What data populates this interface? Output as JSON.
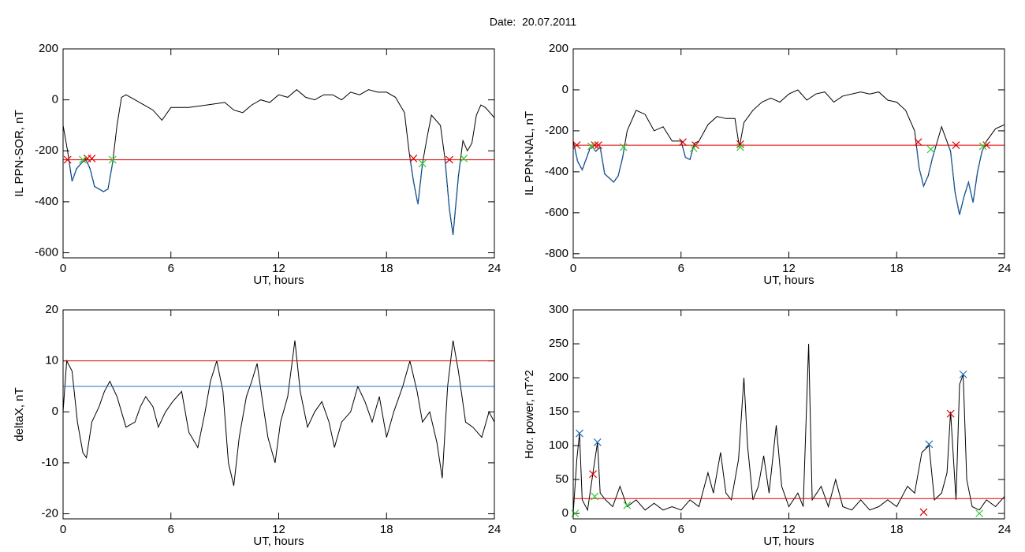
{
  "title": "Date:  20.07.2011",
  "chart_data": [
    {
      "type": "line",
      "ylabel": "IL PPN-SOR, nT",
      "xlabel": "UT, hours",
      "color": "#000000",
      "below_color": "#1f6fbf",
      "xlim": [
        0,
        24
      ],
      "xticks": [
        0,
        6,
        12,
        18,
        24
      ],
      "ylim": [
        -620,
        200
      ],
      "yticks": [
        -600,
        -400,
        -200,
        0,
        200
      ],
      "x": [
        0,
        0.25,
        0.5,
        0.75,
        1,
        1.25,
        1.5,
        1.75,
        2,
        2.25,
        2.5,
        2.75,
        3,
        3.25,
        3.5,
        4,
        4.5,
        5,
        5.5,
        6,
        7,
        8,
        9,
        9.5,
        10,
        10.5,
        11,
        11.5,
        12,
        12.5,
        13,
        13.5,
        14,
        14.5,
        15,
        15.5,
        16,
        16.5,
        17,
        17.5,
        18,
        18.5,
        19,
        19.25,
        19.5,
        19.75,
        20,
        20.25,
        20.5,
        21,
        21.25,
        21.5,
        21.7,
        22,
        22.25,
        22.5,
        22.75,
        23,
        23.25,
        23.5,
        24
      ],
      "values": [
        -100,
        -200,
        -320,
        -270,
        -250,
        -230,
        -270,
        -340,
        -350,
        -360,
        -350,
        -250,
        -100,
        10,
        20,
        0,
        -20,
        -40,
        -80,
        -30,
        -30,
        -20,
        -10,
        -40,
        -50,
        -20,
        0,
        -10,
        20,
        10,
        40,
        10,
        0,
        20,
        20,
        0,
        30,
        20,
        40,
        30,
        30,
        10,
        -50,
        -200,
        -320,
        -410,
        -250,
        -150,
        -60,
        -100,
        -230,
        -430,
        -530,
        -300,
        -160,
        -200,
        -170,
        -60,
        -20,
        -30,
        -70
      ],
      "lines": [
        {
          "value": -235,
          "color": "#e00000"
        }
      ],
      "markers": [
        {
          "color": "#e00000",
          "x": [
            0.25,
            1.35,
            1.6,
            19.5,
            21.5
          ],
          "values": [
            -235,
            -230,
            -230,
            -230,
            -235
          ]
        },
        {
          "color": "#2ecc2e",
          "x": [
            1.1,
            2.75,
            20.0,
            22.3
          ],
          "values": [
            -235,
            -235,
            -250,
            -230
          ]
        }
      ]
    },
    {
      "type": "line",
      "ylabel": "IL PPN-NAL, nT",
      "xlabel": "UT, hours",
      "color": "#000000",
      "below_color": "#1f6fbf",
      "xlim": [
        0,
        24
      ],
      "xticks": [
        0,
        6,
        12,
        18,
        24
      ],
      "ylim": [
        -820,
        200
      ],
      "yticks": [
        -800,
        -600,
        -400,
        -200,
        0,
        200
      ],
      "x": [
        0,
        0.25,
        0.5,
        0.75,
        1,
        1.25,
        1.5,
        1.75,
        2,
        2.25,
        2.5,
        2.75,
        3,
        3.5,
        4,
        4.5,
        5,
        5.5,
        6,
        6.25,
        6.5,
        6.75,
        7,
        7.5,
        8,
        8.5,
        9,
        9.25,
        9.5,
        10,
        10.5,
        11,
        11.5,
        12,
        12.5,
        13,
        13.5,
        14,
        14.5,
        15,
        16,
        16.5,
        17,
        17.5,
        18,
        18.5,
        19,
        19.25,
        19.5,
        19.75,
        20,
        20.5,
        21,
        21.25,
        21.5,
        21.75,
        22,
        22.25,
        22.5,
        22.75,
        23,
        23.5,
        24
      ],
      "values": [
        -250,
        -350,
        -390,
        -330,
        -270,
        -300,
        -280,
        -410,
        -430,
        -450,
        -420,
        -330,
        -200,
        -100,
        -120,
        -200,
        -180,
        -250,
        -250,
        -330,
        -340,
        -260,
        -250,
        -170,
        -130,
        -140,
        -140,
        -280,
        -160,
        -100,
        -60,
        -40,
        -60,
        -20,
        0,
        -50,
        -20,
        -10,
        -60,
        -30,
        -10,
        -20,
        -10,
        -50,
        -60,
        -100,
        -200,
        -380,
        -470,
        -420,
        -330,
        -180,
        -300,
        -500,
        -610,
        -520,
        -450,
        -550,
        -400,
        -300,
        -250,
        -190,
        -170
      ],
      "lines": [
        {
          "value": -270,
          "color": "#e00000"
        }
      ],
      "markers": [
        {
          "color": "#e00000",
          "x": [
            0.2,
            1.2,
            1.4,
            6.1,
            6.8,
            9.3,
            19.2,
            21.3,
            23.0
          ],
          "values": [
            -270,
            -270,
            -270,
            -255,
            -270,
            -265,
            -255,
            -270,
            -270
          ]
        },
        {
          "color": "#2ecc2e",
          "x": [
            1.0,
            2.8,
            6.7,
            9.3,
            19.9,
            22.8
          ],
          "values": [
            -275,
            -280,
            -285,
            -280,
            -290,
            -275
          ]
        }
      ]
    },
    {
      "type": "line",
      "ylabel": "deltaX, nT",
      "xlabel": "UT, hours",
      "color": "#000000",
      "xlim": [
        0,
        24
      ],
      "xticks": [
        0,
        6,
        12,
        18,
        24
      ],
      "ylim": [
        -21,
        20
      ],
      "yticks": [
        -20,
        -10,
        0,
        10,
        20
      ],
      "x": [
        0,
        0.2,
        0.5,
        0.8,
        1.1,
        1.3,
        1.6,
        2,
        2.3,
        2.6,
        3,
        3.5,
        4,
        4.3,
        4.6,
        5,
        5.3,
        5.7,
        6.1,
        6.6,
        7,
        7.5,
        7.9,
        8.2,
        8.55,
        8.9,
        9.2,
        9.5,
        9.8,
        10.2,
        10.5,
        10.8,
        11.1,
        11.4,
        11.8,
        12.1,
        12.5,
        12.9,
        13.2,
        13.6,
        14,
        14.4,
        14.8,
        15.1,
        15.5,
        16,
        16.4,
        16.8,
        17.2,
        17.6,
        18,
        18.4,
        18.9,
        19.3,
        19.7,
        20,
        20.4,
        20.8,
        21.1,
        21.4,
        21.7,
        22,
        22.4,
        22.8,
        23.3,
        23.7,
        24
      ],
      "values": [
        0,
        10,
        8,
        -2,
        -8,
        -9,
        -2,
        1,
        4,
        6,
        3,
        -3,
        -2,
        1,
        3,
        1,
        -3,
        0,
        2,
        4,
        -4,
        -7,
        0,
        6,
        10,
        4,
        -10,
        -14.5,
        -5,
        3,
        6,
        9.5,
        2,
        -5,
        -10,
        -2,
        3,
        14,
        4,
        -3,
        0,
        2,
        -2,
        -7,
        -2,
        0,
        5,
        2,
        -2,
        3,
        -5,
        0,
        5,
        10,
        4,
        -2,
        0,
        -6,
        -13,
        5,
        14,
        8,
        -2,
        -3,
        -5,
        0,
        -2
      ],
      "lines": [
        {
          "value": 10,
          "color": "#e00000"
        },
        {
          "value": 5,
          "color": "#1f6fbf"
        }
      ],
      "markers": []
    },
    {
      "type": "line",
      "ylabel": "Hor. power, nT^2",
      "xlabel": "UT, hours",
      "color": "#000000",
      "xlim": [
        0,
        24
      ],
      "xticks": [
        0,
        6,
        12,
        18,
        24
      ],
      "ylim": [
        -8,
        300
      ],
      "yticks": [
        0,
        50,
        100,
        150,
        200,
        250,
        300
      ],
      "x": [
        0,
        0.2,
        0.35,
        0.5,
        0.8,
        1.1,
        1.35,
        1.5,
        1.8,
        2.2,
        2.6,
        3,
        3.5,
        4,
        4.5,
        5,
        5.5,
        6,
        6.5,
        7,
        7.5,
        7.8,
        8.2,
        8.5,
        8.8,
        9.2,
        9.5,
        9.7,
        10,
        10.3,
        10.6,
        10.9,
        11.3,
        11.6,
        12,
        12.5,
        12.8,
        13.1,
        13.3,
        13.8,
        14.2,
        14.6,
        15,
        15.5,
        16,
        16.5,
        17,
        17.5,
        18,
        18.6,
        19,
        19.4,
        19.8,
        20.1,
        20.5,
        20.8,
        21.0,
        21.3,
        21.5,
        21.7,
        21.9,
        22.2,
        22.6,
        23,
        23.5,
        24
      ],
      "values": [
        0,
        80,
        118,
        20,
        5,
        60,
        105,
        30,
        20,
        10,
        40,
        10,
        20,
        5,
        15,
        5,
        10,
        5,
        20,
        10,
        60,
        30,
        90,
        30,
        20,
        80,
        200,
        100,
        20,
        40,
        85,
        30,
        130,
        40,
        10,
        30,
        10,
        250,
        20,
        40,
        10,
        50,
        10,
        5,
        20,
        5,
        10,
        20,
        10,
        40,
        30,
        90,
        100,
        20,
        30,
        60,
        150,
        20,
        190,
        205,
        50,
        10,
        5,
        20,
        10,
        25
      ],
      "lines": [
        {
          "value": 22,
          "color": "#e00000"
        }
      ],
      "markers": [
        {
          "color": "#1f6fbf",
          "x": [
            0.35,
            1.35,
            19.8,
            21.7
          ],
          "values": [
            118,
            105,
            102,
            205
          ]
        },
        {
          "color": "#e00000",
          "x": [
            1.1,
            21.0,
            19.5
          ],
          "values": [
            58,
            147,
            2
          ]
        },
        {
          "color": "#2ecc2e",
          "x": [
            0.1,
            1.2,
            3.0,
            22.6
          ],
          "values": [
            0,
            25,
            12,
            0
          ]
        }
      ]
    }
  ]
}
